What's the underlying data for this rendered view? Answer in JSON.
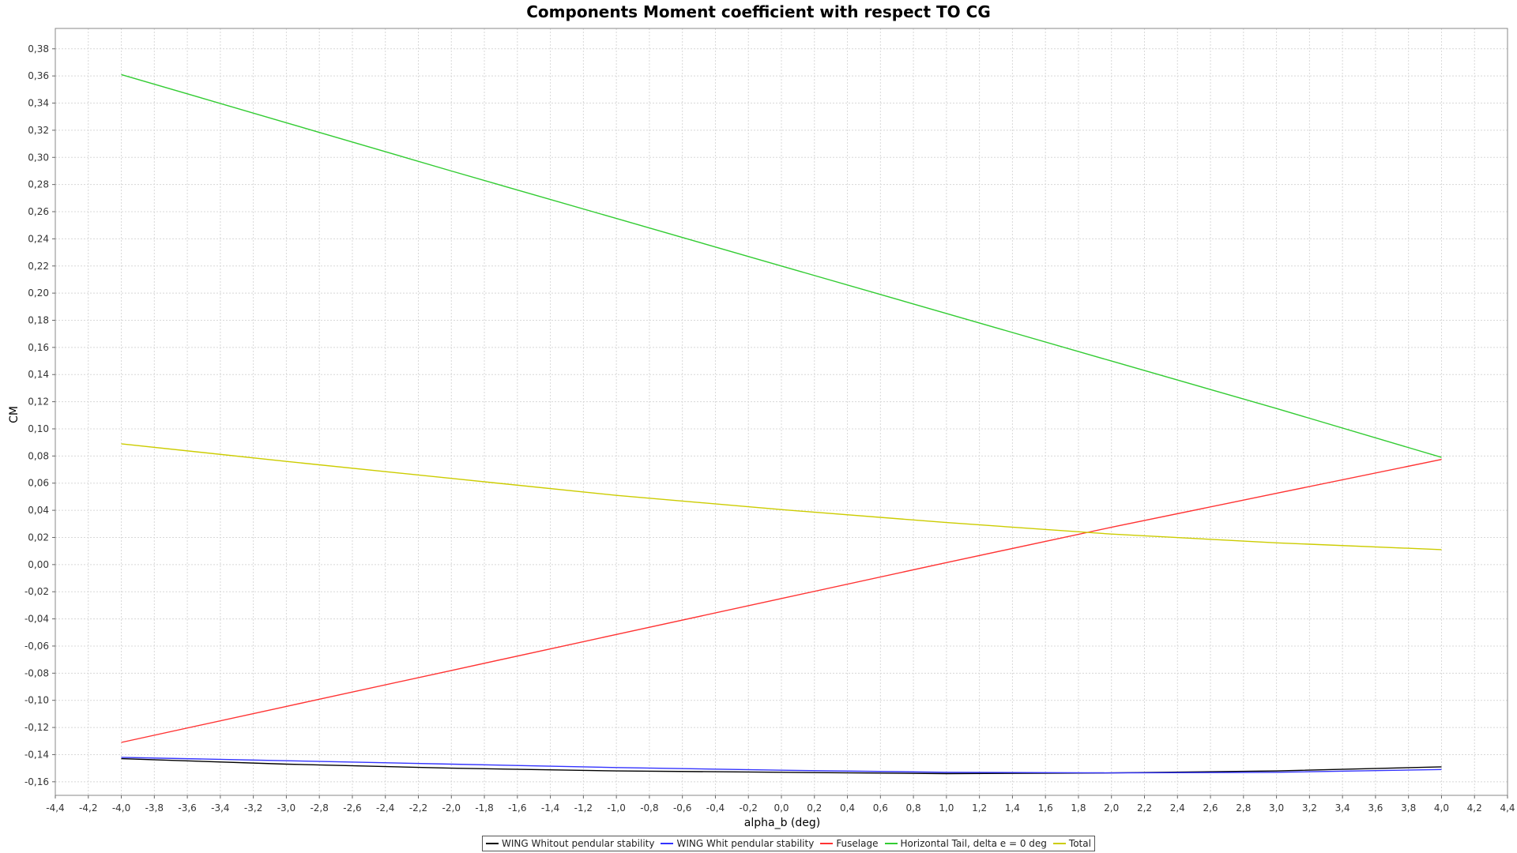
{
  "chart_data": {
    "type": "line",
    "title": "Components Moment coefficient with respect TO CG",
    "xlabel": "alpha_b (deg)",
    "ylabel": "CM",
    "xlim": [
      -4.4,
      4.4
    ],
    "ylim": [
      -0.17,
      0.395
    ],
    "x_ticks": [
      "-4,4",
      "-4,2",
      "-4,0",
      "-3,8",
      "-3,6",
      "-3,4",
      "-3,2",
      "-3,0",
      "-2,8",
      "-2,6",
      "-2,4",
      "-2,2",
      "-2,0",
      "-1,8",
      "-1,6",
      "-1,4",
      "-1,2",
      "-1,0",
      "-0,8",
      "-0,6",
      "-0,4",
      "-0,2",
      "0,0",
      "0,2",
      "0,4",
      "0,6",
      "0,8",
      "1,0",
      "1,2",
      "1,4",
      "1,6",
      "1,8",
      "2,0",
      "2,2",
      "2,4",
      "2,6",
      "2,8",
      "3,0",
      "3,2",
      "3,4",
      "3,6",
      "3,8",
      "4,0",
      "4,2",
      "4,4"
    ],
    "y_ticks": [
      "-0,16",
      "-0,14",
      "-0,12",
      "-0,10",
      "-0,08",
      "-0,06",
      "-0,04",
      "-0,02",
      "0,00",
      "0,02",
      "0,04",
      "0,06",
      "0,08",
      "0,10",
      "0,12",
      "0,14",
      "0,16",
      "0,18",
      "0,20",
      "0,22",
      "0,24",
      "0,26",
      "0,28",
      "0,30",
      "0,32",
      "0,34",
      "0,36",
      "0,38"
    ],
    "grid": true,
    "legend_position": "bottom",
    "x": [
      -4.0,
      -3.0,
      -2.0,
      -1.0,
      0.0,
      1.0,
      2.0,
      3.0,
      4.0
    ],
    "series": [
      {
        "name": "WING Whitout pendular stability",
        "color": "#000000",
        "values": [
          -0.143,
          -0.147,
          -0.15,
          -0.152,
          -0.153,
          -0.154,
          -0.1535,
          -0.152,
          -0.149
        ]
      },
      {
        "name": "WING Whit pendular stability",
        "color": "#3333ff",
        "values": [
          -0.142,
          -0.1445,
          -0.147,
          -0.1495,
          -0.1515,
          -0.153,
          -0.1535,
          -0.153,
          -0.151
        ]
      },
      {
        "name": "Fuselage",
        "color": "#ff3333",
        "values": [
          -0.131,
          -0.1045,
          -0.078,
          -0.0515,
          -0.025,
          0.0015,
          0.0275,
          0.0525,
          0.0775
        ]
      },
      {
        "name": "Horizontal Tail, delta e = 0 deg",
        "color": "#33cc33",
        "values": [
          0.361,
          0.3255,
          0.29,
          0.255,
          0.22,
          0.185,
          0.15,
          0.115,
          0.079
        ]
      },
      {
        "name": "Total",
        "color": "#cccc00",
        "values": [
          0.089,
          0.076,
          0.0635,
          0.051,
          0.0405,
          0.031,
          0.0225,
          0.016,
          0.011
        ]
      }
    ]
  }
}
